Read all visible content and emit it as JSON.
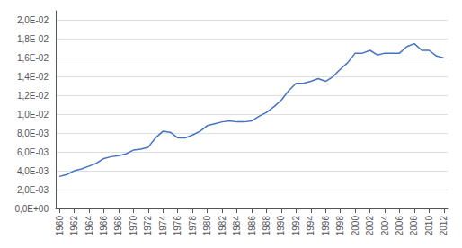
{
  "chart_data": {
    "type": "line",
    "x": [
      1960,
      1961,
      1962,
      1963,
      1964,
      1965,
      1966,
      1967,
      1968,
      1969,
      1970,
      1971,
      1972,
      1973,
      1974,
      1975,
      1976,
      1977,
      1978,
      1979,
      1980,
      1981,
      1982,
      1983,
      1984,
      1985,
      1986,
      1987,
      1988,
      1989,
      1990,
      1991,
      1992,
      1993,
      1994,
      1995,
      1996,
      1997,
      1998,
      1999,
      2000,
      2001,
      2002,
      2003,
      2004,
      2005,
      2006,
      2007,
      2008,
      2009,
      2010,
      2011,
      2012
    ],
    "values": [
      0.0034,
      0.0036,
      0.004,
      0.0042,
      0.0045,
      0.0048,
      0.0053,
      0.0055,
      0.0056,
      0.0058,
      0.0062,
      0.0063,
      0.0065,
      0.0075,
      0.0082,
      0.0081,
      0.0075,
      0.0075,
      0.0078,
      0.0082,
      0.0088,
      0.009,
      0.0092,
      0.0093,
      0.0092,
      0.0092,
      0.0093,
      0.0098,
      0.0102,
      0.0108,
      0.0115,
      0.0125,
      0.0133,
      0.0133,
      0.0135,
      0.0138,
      0.0135,
      0.014,
      0.0148,
      0.0155,
      0.0165,
      0.0165,
      0.0168,
      0.0163,
      0.0165,
      0.0165,
      0.0165,
      0.0172,
      0.0175,
      0.0168,
      0.0168,
      0.0162,
      0.016
    ],
    "color": "#4472C4",
    "xlim": [
      1959.5,
      2012.5
    ],
    "xticks": [
      1960,
      1962,
      1964,
      1966,
      1968,
      1970,
      1972,
      1974,
      1976,
      1978,
      1980,
      1982,
      1984,
      1986,
      1988,
      1990,
      1992,
      1994,
      1996,
      1998,
      2000,
      2002,
      2004,
      2006,
      2008,
      2010,
      2012
    ],
    "ylim": [
      0.0,
      0.021
    ],
    "yticks": [
      {
        "value": 0.0,
        "label": "0,0E+00"
      },
      {
        "value": 0.002,
        "label": "2,0E-03"
      },
      {
        "value": 0.004,
        "label": "4,0E-03"
      },
      {
        "value": 0.006,
        "label": "6,0E-03"
      },
      {
        "value": 0.008,
        "label": "8,0E-03"
      },
      {
        "value": 0.01,
        "label": "1,0E-02"
      },
      {
        "value": 0.012,
        "label": "1,2E-02"
      },
      {
        "value": 0.014,
        "label": "1,4E-02"
      },
      {
        "value": 0.016,
        "label": "1,6E-02"
      },
      {
        "value": 0.018,
        "label": "1,8E-02"
      },
      {
        "value": 0.02,
        "label": "2,0E-02"
      }
    ],
    "grid": true
  }
}
